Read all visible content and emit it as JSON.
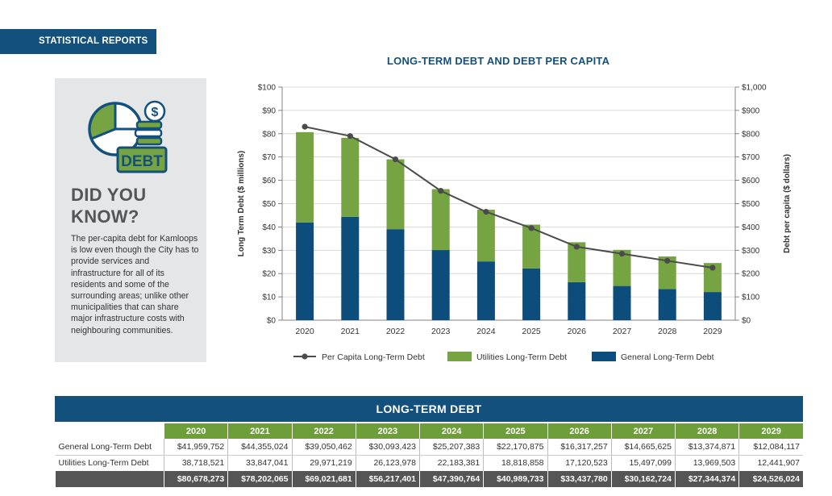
{
  "header": {
    "label": "STATISTICAL REPORTS"
  },
  "did_you_know": {
    "badge": "DEBT",
    "title_line1": "DID YOU",
    "title_line2": "KNOW?",
    "body": "The per-capita debt for Kamloops is low even though the City has to provide services and infrastructure for all of its residents and some of the surrounding areas; unlike other municipalities that can share major infrastructure costs with neighbouring communities."
  },
  "colors": {
    "navy": "#14507c",
    "green": "#6e9e3a",
    "bar_green": "#76a443",
    "bar_blue": "#0c4d7c",
    "line": "#4b4b4b"
  },
  "chart_data": {
    "type": "bar",
    "title": "LONG-TERM DEBT AND DEBT PER CAPITA",
    "categories": [
      "2020",
      "2021",
      "2022",
      "2023",
      "2024",
      "2025",
      "2026",
      "2027",
      "2028",
      "2029"
    ],
    "series": [
      {
        "name": "General Long-Term Debt",
        "type": "bar-stacked",
        "axis": "left",
        "values": [
          41.96,
          44.36,
          39.05,
          30.09,
          25.21,
          22.17,
          16.32,
          14.67,
          13.37,
          12.08
        ]
      },
      {
        "name": "Utilities Long-Term Debt",
        "type": "bar-stacked",
        "axis": "left",
        "values": [
          38.72,
          33.85,
          29.97,
          26.12,
          22.18,
          18.82,
          17.12,
          15.5,
          13.97,
          12.44
        ]
      },
      {
        "name": "Per Capita Long-Term Debt",
        "type": "line",
        "axis": "right",
        "values": [
          830,
          790,
          690,
          555,
          465,
          395,
          315,
          285,
          255,
          225
        ]
      }
    ],
    "ylabel": "Long Term Debt ($ millions)",
    "y2label": "Debt per capita ($ dollars)",
    "ylim": [
      0,
      100
    ],
    "y2lim": [
      0,
      1000
    ],
    "yticks": [
      "$0",
      "$10",
      "$20",
      "$30",
      "$40",
      "$50",
      "$60",
      "$70",
      "$80",
      "$90",
      "$100"
    ],
    "y2ticks": [
      "$0",
      "$100",
      "$200",
      "$300",
      "$400",
      "$500",
      "$600",
      "$700",
      "$800",
      "$900",
      "$1,000"
    ],
    "legend": [
      "Per Capita Long-Term Debt",
      "Utilities Long-Term Debt",
      "General Long-Term Debt"
    ],
    "legend_position": "bottom"
  },
  "table": {
    "title": "LONG-TERM DEBT",
    "years": [
      "2020",
      "2021",
      "2022",
      "2023",
      "2024",
      "2025",
      "2026",
      "2027",
      "2028",
      "2029"
    ],
    "rows": [
      {
        "label": "General Long-Term Debt",
        "values": [
          "$41,959,752",
          "$44,355,024",
          "$39,050,462",
          "$30,093,423",
          "$25,207,383",
          "$22,170,875",
          "$16,317,257",
          "$14,665,625",
          "$13,374,871",
          "$12,084,117"
        ]
      },
      {
        "label": "Utilities Long-Term Debt",
        "values": [
          "38,718,521",
          "33,847,041",
          "29,971,219",
          "26,123,978",
          "22,183,381",
          "18,818,858",
          "17,120,523",
          "15,497,099",
          "13,969,503",
          "12,441,907"
        ]
      }
    ],
    "totals": [
      "$80,678,273",
      "$78,202,065",
      "$69,021,681",
      "$56,217,401",
      "$47,390,764",
      "$40,989,733",
      "$33,437,780",
      "$30,162,724",
      "$27,344,374",
      "$24,526,024"
    ]
  }
}
